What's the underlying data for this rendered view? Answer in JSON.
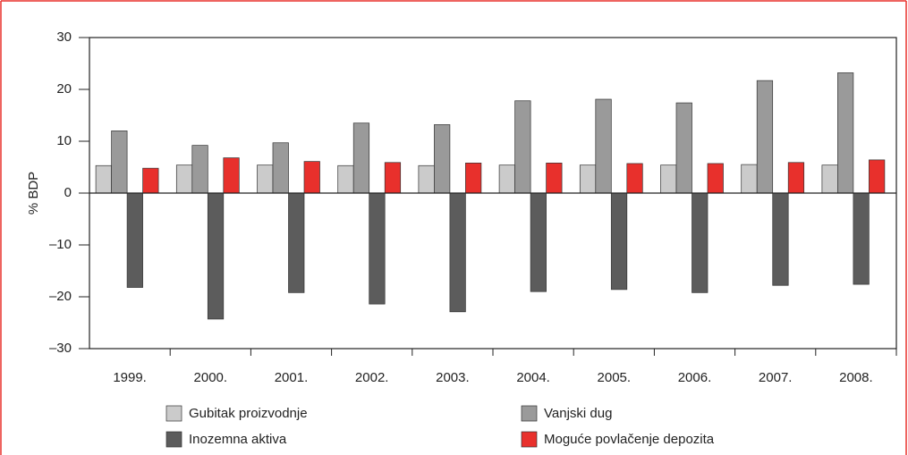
{
  "chart_data": {
    "type": "bar",
    "ylabel": "% BDP",
    "categories": [
      "1999.",
      "2000.",
      "2001.",
      "2002.",
      "2003.",
      "2004.",
      "2005.",
      "2006.",
      "2007.",
      "2008."
    ],
    "series": [
      {
        "name": "Gubitak proizvodnje",
        "color": "#cbcbcb",
        "values": [
          5.3,
          5.4,
          5.4,
          5.3,
          5.3,
          5.4,
          5.4,
          5.4,
          5.5,
          5.4
        ]
      },
      {
        "name": "Vanjski dug",
        "color": "#9a9a9a",
        "values": [
          12,
          9.2,
          9.7,
          13.5,
          13.2,
          17.8,
          18.1,
          17.4,
          21.7,
          23.2
        ]
      },
      {
        "name": "Inozemna aktiva",
        "color": "#5c5c5c",
        "values": [
          -18.2,
          -24.3,
          -19.2,
          -21.4,
          -22.9,
          -19,
          -18.6,
          -19.2,
          -17.8,
          -17.6
        ]
      },
      {
        "name": "Moguće povlačenje depozita",
        "color": "#e8302c",
        "values": [
          4.8,
          6.8,
          6.1,
          5.9,
          5.8,
          5.8,
          5.7,
          5.7,
          5.9,
          6.4
        ]
      }
    ],
    "ylim": [
      -30,
      30
    ],
    "yticks": [
      {
        "value": -30,
        "label": "–30"
      },
      {
        "value": -20,
        "label": "–20"
      },
      {
        "value": -10,
        "label": "–10"
      },
      0,
      10,
      20,
      30
    ]
  }
}
